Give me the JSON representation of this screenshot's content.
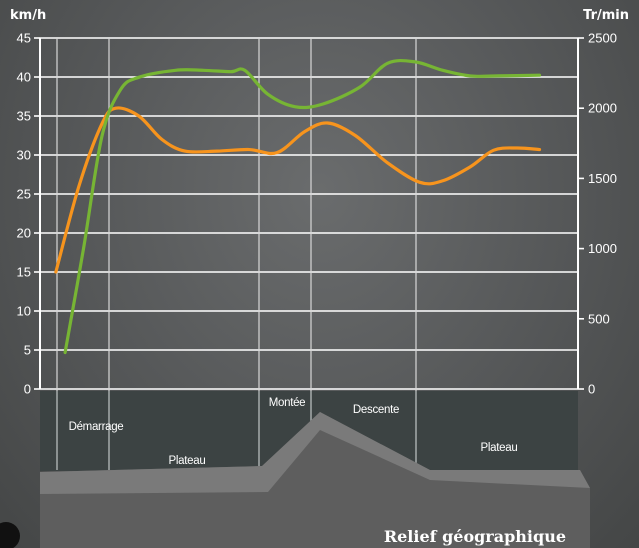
{
  "chart_data": {
    "type": "line",
    "title": "",
    "y_left": {
      "label": "km/h",
      "ticks": [
        0,
        5,
        10,
        15,
        20,
        25,
        30,
        35,
        40,
        45
      ],
      "range": [
        0,
        45
      ]
    },
    "y_right": {
      "label": "Tr/min",
      "ticks": [
        0,
        500,
        1000,
        1500,
        2000,
        2500
      ],
      "range": [
        0,
        2500
      ]
    },
    "x_range": [
      0,
      100
    ],
    "series": [
      {
        "axis": "left",
        "color": "#f7941d",
        "points": [
          [
            0,
            15
          ],
          [
            5,
            26
          ],
          [
            10,
            34
          ],
          [
            13,
            36
          ],
          [
            18,
            35
          ],
          [
            23,
            32
          ],
          [
            28,
            30.5
          ],
          [
            35,
            30.5
          ],
          [
            42,
            30.7
          ],
          [
            48,
            30.3
          ],
          [
            54,
            33
          ],
          [
            59,
            34.1
          ],
          [
            65,
            32.5
          ],
          [
            72,
            29
          ],
          [
            79,
            26.5
          ],
          [
            84,
            26.7
          ],
          [
            90,
            28.5
          ],
          [
            95,
            30.6
          ],
          [
            100,
            30.9
          ],
          [
            105,
            30.7
          ]
        ]
      },
      {
        "axis": "right",
        "color": "#77b534",
        "points": [
          [
            2,
            260
          ],
          [
            6,
            1000
          ],
          [
            10,
            1800
          ],
          [
            14,
            2130
          ],
          [
            18,
            2220
          ],
          [
            26,
            2270
          ],
          [
            32,
            2270
          ],
          [
            38,
            2260
          ],
          [
            41,
            2270
          ],
          [
            46,
            2100
          ],
          [
            52,
            2010
          ],
          [
            58,
            2030
          ],
          [
            66,
            2150
          ],
          [
            72,
            2320
          ],
          [
            78,
            2330
          ],
          [
            84,
            2270
          ],
          [
            90,
            2230
          ],
          [
            96,
            2230
          ],
          [
            105,
            2235
          ]
        ]
      }
    ],
    "phases": [
      {
        "label": "Démarrage"
      },
      {
        "label": "Plateau"
      },
      {
        "label": "Montée"
      },
      {
        "label": "Descente"
      },
      {
        "label": "Plateau"
      }
    ],
    "relief_label": "Relief géographique",
    "grid": true
  }
}
